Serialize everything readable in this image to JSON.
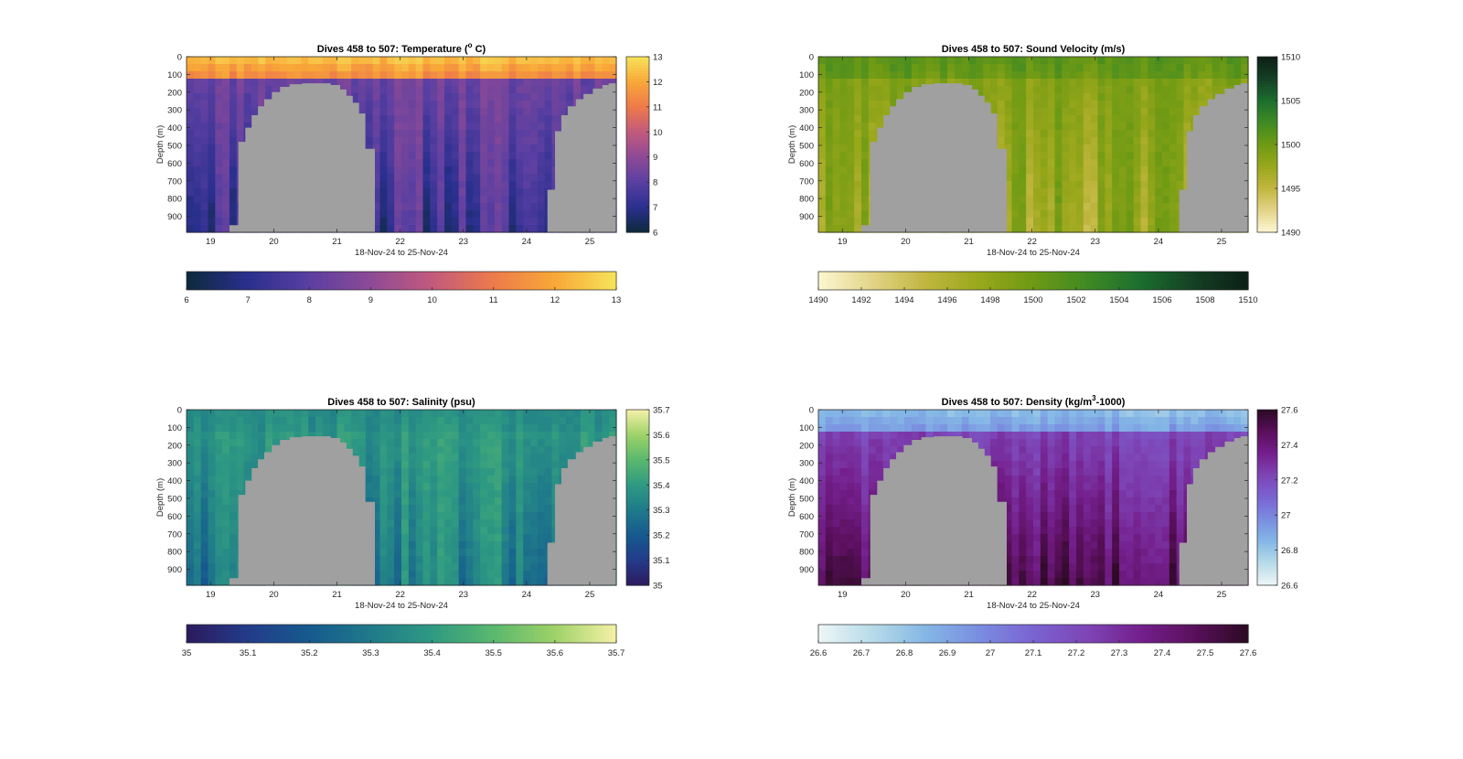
{
  "chart_data": [
    {
      "type": "heatmap",
      "title_text": "Dives 458 to 507: Temperature (",
      "title_sup": "o",
      "title_tail": " C)",
      "xlabel": "18-Nov-24 to 25-Nov-24",
      "ylabel": "Depth (m)",
      "x_ticks": [
        "19",
        "20",
        "21",
        "22",
        "23",
        "24",
        "25"
      ],
      "y_ticks": [
        "0",
        "100",
        "200",
        "300",
        "400",
        "500",
        "600",
        "700",
        "800",
        "900"
      ],
      "xlim": [
        18.62,
        25.42
      ],
      "ylim": [
        0,
        990
      ],
      "clim": [
        6,
        13
      ],
      "side_colorbar_ticks": [
        "6",
        "7",
        "8",
        "9",
        "10",
        "11",
        "12",
        "13"
      ],
      "bottom_colorbar_ticks": [
        "6",
        "7",
        "8",
        "9",
        "10",
        "11",
        "12",
        "13"
      ],
      "colormap": [
        "#0c2a3c",
        "#2a2f8e",
        "#5a3fa2",
        "#8e4a96",
        "#c25a7c",
        "#ee7a4a",
        "#f8a838",
        "#f7e35a"
      ],
      "surface_value": 12.6,
      "deep_value": 8.4,
      "bottom_value": 7.4,
      "bottom_mask_color": "#a0a0a0"
    },
    {
      "type": "heatmap",
      "title_text": "Dives 458 to 507: Sound Velocity (m/s)",
      "title_sup": "",
      "title_tail": "",
      "xlabel": "18-Nov-24 to 25-Nov-24",
      "ylabel": "Depth (m)",
      "x_ticks": [
        "19",
        "20",
        "21",
        "22",
        "23",
        "24",
        "25"
      ],
      "y_ticks": [
        "0",
        "100",
        "200",
        "300",
        "400",
        "500",
        "600",
        "700",
        "800",
        "900"
      ],
      "xlim": [
        18.62,
        25.42
      ],
      "ylim": [
        0,
        990
      ],
      "clim": [
        1490,
        1510
      ],
      "side_colorbar_ticks": [
        "1490",
        "1495",
        "1500",
        "1505",
        "1510"
      ],
      "bottom_colorbar_ticks": [
        "1490",
        "1492",
        "1494",
        "1496",
        "1498",
        "1500",
        "1502",
        "1504",
        "1506",
        "1508",
        "1510"
      ],
      "colormap": [
        "#fdf7d3",
        "#e2d487",
        "#c0b63f",
        "#99a71b",
        "#6e9a14",
        "#3f8a23",
        "#1c6e2e",
        "#143f24",
        "#0c1f15"
      ],
      "surface_value": 1501.0,
      "deep_value": 1498.8,
      "bottom_value": 1497.2,
      "bottom_mask_color": "#a0a0a0"
    },
    {
      "type": "heatmap",
      "title_text": "Dives 458 to 507: Salinity (psu)",
      "title_sup": "",
      "title_tail": "",
      "xlabel": "18-Nov-24 to 25-Nov-24",
      "ylabel": "Depth (m)",
      "x_ticks": [
        "19",
        "20",
        "21",
        "22",
        "23",
        "24",
        "25"
      ],
      "y_ticks": [
        "0",
        "100",
        "200",
        "300",
        "400",
        "500",
        "600",
        "700",
        "800",
        "900"
      ],
      "xlim": [
        18.62,
        25.42
      ],
      "ylim": [
        0,
        990
      ],
      "clim": [
        35,
        35.7
      ],
      "side_colorbar_ticks": [
        "35",
        "35.1",
        "35.2",
        "35.3",
        "35.4",
        "35.5",
        "35.6",
        "35.7"
      ],
      "bottom_colorbar_ticks": [
        "35",
        "35.1",
        "35.2",
        "35.3",
        "35.4",
        "35.5",
        "35.6",
        "35.7"
      ],
      "colormap": [
        "#2c1a5e",
        "#233b8a",
        "#165a8e",
        "#1f7a8a",
        "#2f9a82",
        "#5ab86e",
        "#9ed268",
        "#f6f1a8"
      ],
      "surface_value": 35.36,
      "deep_value": 35.39,
      "bottom_value": 35.3,
      "bottom_mask_color": "#a0a0a0"
    },
    {
      "type": "heatmap",
      "title_text": "Dives 458 to 507: Density (kg/m",
      "title_sup": "3",
      "title_tail": "-1000)",
      "xlabel": "18-Nov-24 to 25-Nov-24",
      "ylabel": "Depth (m)",
      "x_ticks": [
        "19",
        "20",
        "21",
        "22",
        "23",
        "24",
        "25"
      ],
      "y_ticks": [
        "0",
        "100",
        "200",
        "300",
        "400",
        "500",
        "600",
        "700",
        "800",
        "900"
      ],
      "xlim": [
        18.62,
        25.42
      ],
      "ylim": [
        0,
        990
      ],
      "clim": [
        26.6,
        27.6
      ],
      "side_colorbar_ticks": [
        "26.6",
        "26.8",
        "27",
        "27.2",
        "27.4",
        "27.6"
      ],
      "bottom_colorbar_ticks": [
        "26.6",
        "26.7",
        "26.8",
        "26.9",
        "27",
        "27.1",
        "27.2",
        "27.3",
        "27.4",
        "27.5",
        "27.6"
      ],
      "colormap": [
        "#eef6f8",
        "#b8dbe8",
        "#84b7e6",
        "#7a8de0",
        "#7a63d2",
        "#7e45b6",
        "#741f8c",
        "#5a0f5c",
        "#2b0a22"
      ],
      "surface_value": 26.82,
      "deep_value": 27.22,
      "bottom_value": 27.5,
      "bottom_mask_color": "#a0a0a0"
    }
  ]
}
